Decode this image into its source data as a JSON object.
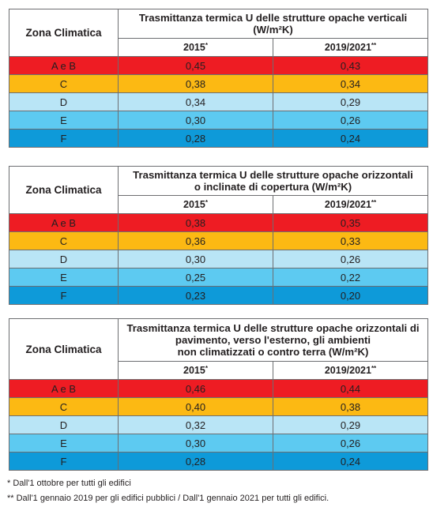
{
  "zone_header": "Zona Climatica",
  "col_2015": "2015",
  "col_2019": "2019/2021",
  "mark_2015": "*",
  "mark_2019": "**",
  "tables": [
    {
      "title_lines": [
        "Trasmittanza termica U delle strutture opache verticali",
        "(W/m²K)"
      ],
      "rows": [
        {
          "zone": "A e B",
          "v2015": "0,45",
          "v2019": "0,43"
        },
        {
          "zone": "C",
          "v2015": "0,38",
          "v2019": "0,34"
        },
        {
          "zone": "D",
          "v2015": "0,34",
          "v2019": "0,29"
        },
        {
          "zone": "E",
          "v2015": "0,30",
          "v2019": "0,26"
        },
        {
          "zone": "F",
          "v2015": "0,28",
          "v2019": "0,24"
        }
      ]
    },
    {
      "title_lines": [
        "Trasmittanza termica U delle strutture opache orizzontali",
        "o inclinate di copertura (W/m²K)"
      ],
      "rows": [
        {
          "zone": "A e B",
          "v2015": "0,38",
          "v2019": "0,35"
        },
        {
          "zone": "C",
          "v2015": "0,36",
          "v2019": "0,33"
        },
        {
          "zone": "D",
          "v2015": "0,30",
          "v2019": "0,26"
        },
        {
          "zone": "E",
          "v2015": "0,25",
          "v2019": "0,22"
        },
        {
          "zone": "F",
          "v2015": "0,23",
          "v2019": "0,20"
        }
      ]
    },
    {
      "title_lines": [
        "Trasmittanza termica U delle strutture opache orizzontali di",
        "pavimento, verso l'esterno, gli ambienti",
        "non climatizzati o contro terra (W/m²K)"
      ],
      "rows": [
        {
          "zone": "A e B",
          "v2015": "0,46",
          "v2019": "0,44"
        },
        {
          "zone": "C",
          "v2015": "0,40",
          "v2019": "0,38"
        },
        {
          "zone": "D",
          "v2015": "0,32",
          "v2019": "0,29"
        },
        {
          "zone": "E",
          "v2015": "0,30",
          "v2019": "0,26"
        },
        {
          "zone": "F",
          "v2015": "0,28",
          "v2019": "0,24"
        }
      ]
    }
  ],
  "footnotes": [
    "* Dall'1 ottobre per tutti gli edifici",
    "** Dall'1 gennaio 2019 per gli edifici pubblici / Dall'1 gennaio 2021 per tutti gli edifici."
  ],
  "colors": {
    "A e B": "#ee1c23",
    "C": "#fcb913",
    "D": "#b9e5f6",
    "E": "#5dcaf1",
    "F": "#0e9ad9"
  }
}
